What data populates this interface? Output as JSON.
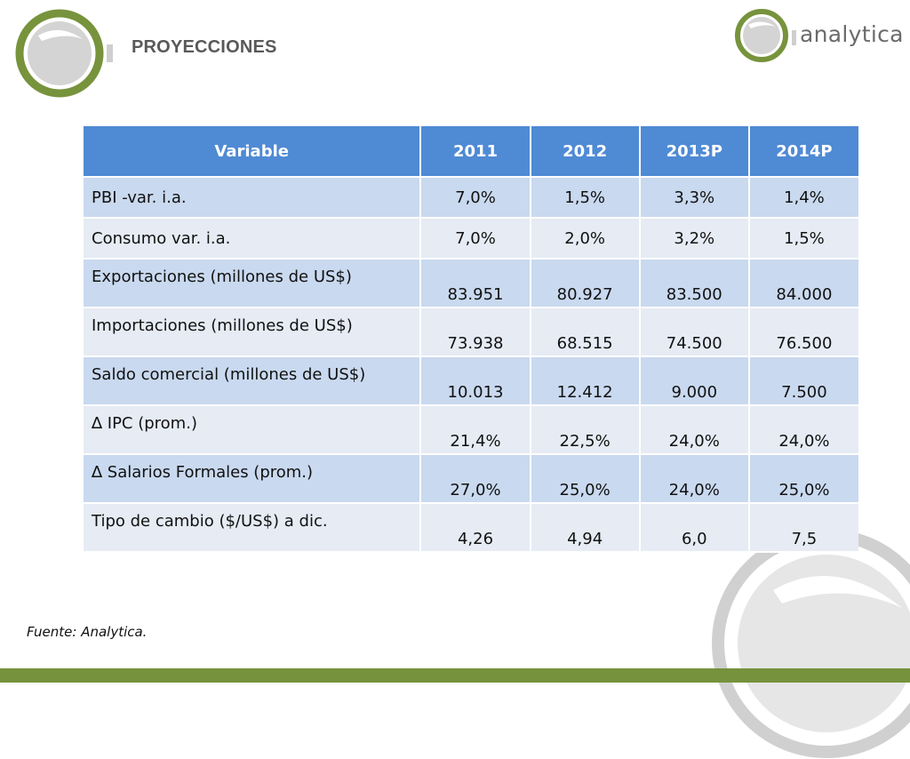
{
  "header": {
    "title": "PROYECCIONES",
    "brand_name": "analytica"
  },
  "colors": {
    "accent_green": "#76923c",
    "ring_green": "#77933c",
    "header_blue": "#4f8ad4",
    "row_dark": "#c9d9ef",
    "row_light": "#e6ebf4"
  },
  "table": {
    "columns": [
      "Variable",
      "2011",
      "2012",
      "2013P",
      "2014P"
    ],
    "rows": [
      {
        "label": "PBI -var. i.a.",
        "values": [
          "7,0%",
          "1,5%",
          "3,3%",
          "1,4%"
        ]
      },
      {
        "label": "Consumo  var. i.a.",
        "values": [
          "7,0%",
          "2,0%",
          "3,2%",
          "1,5%"
        ]
      },
      {
        "label": "Exportaciones (millones de US$)",
        "values": [
          "83.951",
          "80.927",
          "83.500",
          "84.000"
        ]
      },
      {
        "label": "Importaciones (millones de US$)",
        "values": [
          "73.938",
          "68.515",
          "74.500",
          "76.500"
        ]
      },
      {
        "label": "Saldo comercial (millones de US$)",
        "values": [
          "10.013",
          "12.412",
          "9.000",
          "7.500"
        ]
      },
      {
        "label": "∆ IPC  (prom.)",
        "values": [
          "21,4%",
          "22,5%",
          "24,0%",
          "24,0%"
        ]
      },
      {
        "label": "∆ Salarios Formales (prom.)",
        "values": [
          "27,0%",
          "25,0%",
          "24,0%",
          "25,0%"
        ]
      },
      {
        "label": "Tipo de cambio ($/US$) a dic.",
        "values": [
          "4,26",
          "4,94",
          "6,0",
          "7,5"
        ]
      }
    ]
  },
  "footer": {
    "source": "Fuente: Analytica."
  }
}
